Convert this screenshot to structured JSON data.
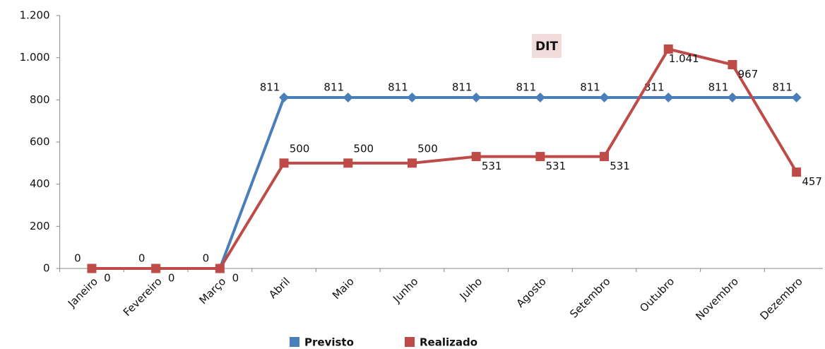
{
  "chart_data": {
    "type": "line",
    "title": "DIT",
    "categories": [
      "Janeiro",
      "Fevereiro",
      "Março",
      "Abril",
      "Maio",
      "Junho",
      "Julho",
      "Agosto",
      "Setembro",
      "Outubro",
      "Novembro",
      "Dezembro"
    ],
    "series": [
      {
        "name": "Previsto",
        "color": "#4a7ebb",
        "marker": "diamond",
        "values": [
          0,
          0,
          0,
          811,
          811,
          811,
          811,
          811,
          811,
          811,
          811,
          811
        ]
      },
      {
        "name": "Realizado",
        "color": "#be4b48",
        "marker": "square",
        "values": [
          0,
          0,
          0,
          500,
          500,
          500,
          531,
          531,
          531,
          1041,
          967,
          457
        ],
        "value_labels": [
          "0",
          "0",
          "0",
          "500",
          "500",
          "500",
          "531",
          "531",
          "531",
          "1.041",
          "967",
          "457"
        ]
      }
    ],
    "ylim": [
      0,
      1200
    ],
    "yticks": [
      0,
      200,
      400,
      600,
      800,
      {
        "value": 1000,
        "label": "1.000"
      },
      {
        "value": 1200,
        "label": "1.200"
      }
    ],
    "legend": "bottom"
  }
}
